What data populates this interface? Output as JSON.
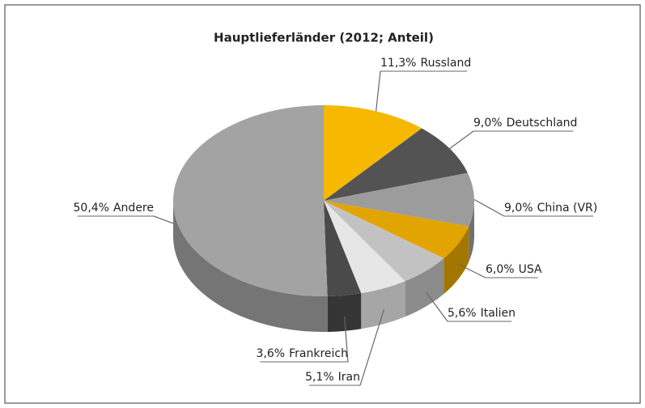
{
  "chart_data": {
    "type": "pie",
    "title": "Hauptlieferländer (2012; Anteil)",
    "categories": [
      "Russland",
      "Deutschland",
      "China (VR)",
      "USA",
      "Italien",
      "Iran",
      "Frankreich",
      "Andere"
    ],
    "values": [
      11.3,
      9.0,
      9.0,
      6.0,
      5.6,
      5.1,
      3.6,
      50.4
    ],
    "value_labels": [
      "11,3%",
      "9,0%",
      "9,0%",
      "6,0%",
      "5,6%",
      "5,1%",
      "3,6%",
      "50,4%"
    ],
    "colors": [
      "#f6b800",
      "#535353",
      "#9c9c9c",
      "#e2a400",
      "#c2c2c2",
      "#e6e6e6",
      "#4a4a4a",
      "#a3a3a3"
    ]
  }
}
